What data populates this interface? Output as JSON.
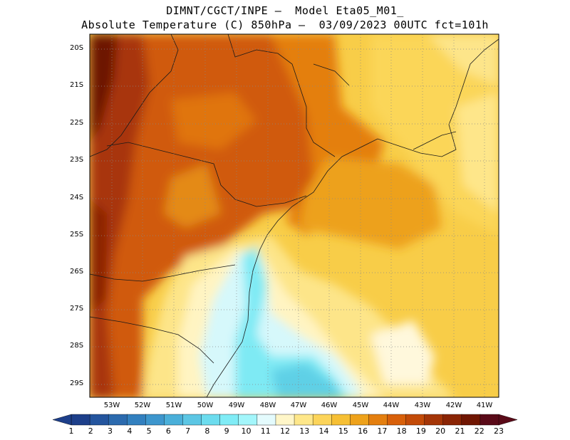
{
  "header": {
    "line1": "DIMNT/CGCT/INPE –  Model Eta05_M01_",
    "line2": "Absolute Temperature (C) 850hPa –  03/09/2023 00UTC fct=101h"
  },
  "map": {
    "lat_labels": [
      "20S",
      "21S",
      "22S",
      "23S",
      "24S",
      "25S",
      "26S",
      "27S",
      "28S",
      "29S"
    ],
    "lon_labels": [
      "53W",
      "52W",
      "51W",
      "50W",
      "49W",
      "48W",
      "47W",
      "46W",
      "45W",
      "44W",
      "43W",
      "42W",
      "41W"
    ]
  },
  "colorbar": {
    "labels": [
      "1",
      "2",
      "3",
      "4",
      "5",
      "6",
      "7",
      "8",
      "9",
      "10",
      "11",
      "12",
      "13",
      "14",
      "15",
      "16",
      "17",
      "18",
      "19",
      "20",
      "21",
      "22",
      "23"
    ],
    "colors": [
      "#1d3f8a",
      "#24559e",
      "#2b6aae",
      "#3280bf",
      "#3d96cd",
      "#4aafd9",
      "#5cc6e4",
      "#6cdcee",
      "#80ecf6",
      "#a3f6fb",
      "#e4fbfd",
      "#fff6c8",
      "#fee78a",
      "#fcd45a",
      "#f6bf34",
      "#eea21b",
      "#e47f0f",
      "#d8600a",
      "#c34b08",
      "#a43507",
      "#8a2404",
      "#701602",
      "#5a0a18"
    ]
  }
}
